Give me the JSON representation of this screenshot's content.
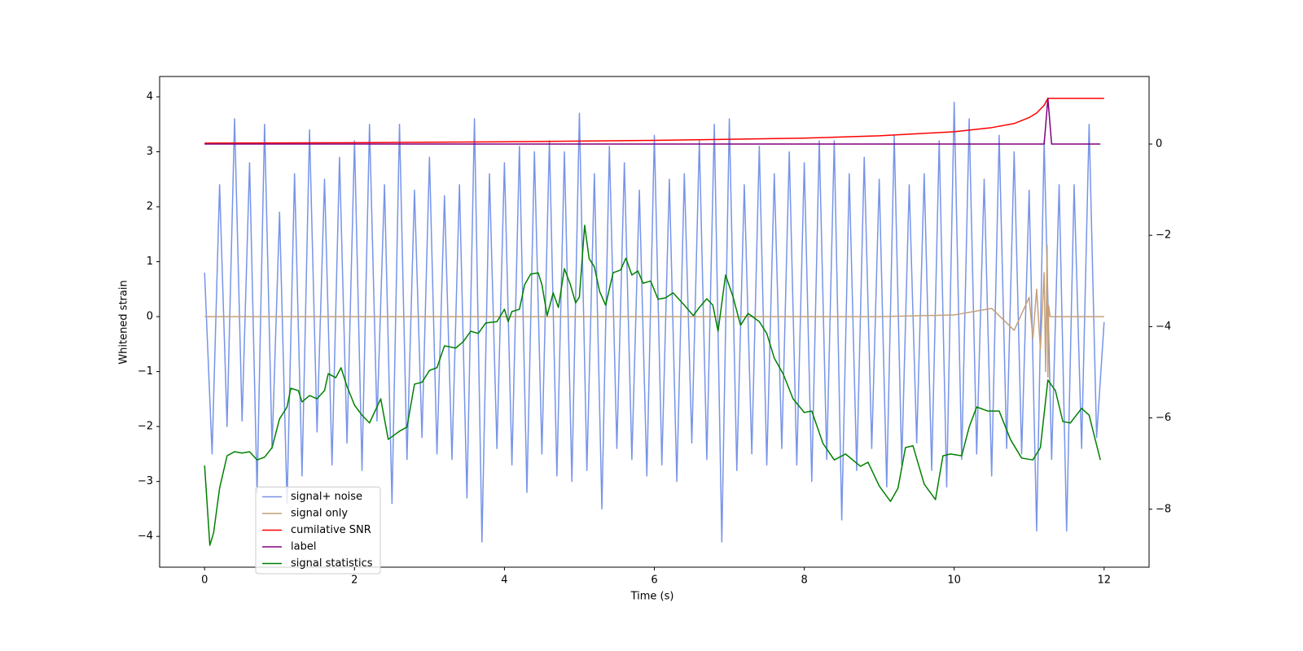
{
  "chart_data": {
    "type": "line",
    "xlabel": "Time (s)",
    "ylabel": "Whitened strain",
    "xlim": [
      -0.6,
      12.6
    ],
    "xticks": [
      0,
      2,
      4,
      6,
      8,
      10,
      12
    ],
    "ylim": [
      -4.56,
      4.37
    ],
    "yticks": [
      {
        "value": -4,
        "label": "−4"
      },
      {
        "value": -3,
        "label": "−3"
      },
      {
        "value": -2,
        "label": "−2"
      },
      {
        "value": -1,
        "label": "−1"
      },
      0,
      1,
      2,
      3,
      4
    ],
    "y2lim": [
      -9.27,
      1.48
    ],
    "y2ticks": [
      {
        "value": -8,
        "label": "−8"
      },
      {
        "value": -6,
        "label": "−6"
      },
      {
        "value": -4,
        "label": "−4"
      },
      {
        "value": -2,
        "label": "−2"
      },
      0
    ],
    "legend": "lower left",
    "series": [
      {
        "name": "signal+ noise",
        "color": "#7794e8",
        "x": [
          0,
          0.1,
          0.2,
          0.3,
          0.4,
          0.5,
          0.6,
          0.7,
          0.8,
          0.9,
          1,
          1.1,
          1.2,
          1.3,
          1.4,
          1.5,
          1.6,
          1.7,
          1.8,
          1.9,
          2,
          2.1,
          2.2,
          2.3,
          2.4,
          2.5,
          2.6,
          2.7,
          2.8,
          2.9,
          3,
          3.1,
          3.2,
          3.3,
          3.4,
          3.5,
          3.6,
          3.7,
          3.8,
          3.9,
          4,
          4.1,
          4.2,
          4.3,
          4.4,
          4.5,
          4.6,
          4.7,
          4.8,
          4.9,
          5,
          5.1,
          5.2,
          5.3,
          5.4,
          5.5,
          5.6,
          5.7,
          5.8,
          5.9,
          6,
          6.1,
          6.2,
          6.3,
          6.4,
          6.5,
          6.6,
          6.7,
          6.8,
          6.9,
          7,
          7.1,
          7.2,
          7.3,
          7.4,
          7.5,
          7.6,
          7.7,
          7.8,
          7.9,
          8,
          8.1,
          8.2,
          8.3,
          8.4,
          8.5,
          8.6,
          8.7,
          8.8,
          8.9,
          9,
          9.1,
          9.2,
          9.3,
          9.4,
          9.5,
          9.6,
          9.7,
          9.8,
          9.9,
          10,
          10.1,
          10.2,
          10.3,
          10.4,
          10.5,
          10.6,
          10.7,
          10.8,
          10.9,
          11,
          11.1,
          11.2,
          11.3,
          11.4,
          11.5,
          11.6,
          11.7,
          11.8,
          11.9,
          12
        ],
        "values": [
          0.8,
          -2.5,
          2.4,
          -2.0,
          3.6,
          -1.9,
          2.8,
          -3.2,
          3.5,
          -2.4,
          1.9,
          -3.4,
          2.6,
          -2.9,
          3.4,
          -2.1,
          2.5,
          -2.7,
          2.9,
          -2.3,
          3.2,
          -2.8,
          3.5,
          -1.9,
          2.4,
          -3.4,
          3.5,
          -2.6,
          2.3,
          -2.2,
          2.9,
          -2.5,
          2.2,
          -2.6,
          2.4,
          -3.3,
          3.6,
          -4.1,
          2.6,
          -2.4,
          2.8,
          -2.7,
          3.1,
          -3.2,
          3.0,
          -2.5,
          3.2,
          -2.9,
          3.0,
          -3.0,
          3.7,
          -2.8,
          2.6,
          -3.5,
          3.1,
          -2.4,
          2.8,
          -2.6,
          2.3,
          -2.9,
          3.3,
          -2.7,
          2.5,
          -3.0,
          2.6,
          -2.3,
          3.2,
          -2.6,
          3.5,
          -4.1,
          3.6,
          -2.8,
          2.4,
          -2.5,
          3.1,
          -2.7,
          2.6,
          -2.4,
          3.0,
          -2.7,
          2.8,
          -3.0,
          3.2,
          -2.6,
          3.2,
          -3.7,
          2.6,
          -2.8,
          2.9,
          -2.4,
          2.5,
          -3.1,
          3.3,
          -2.7,
          2.4,
          -2.3,
          2.6,
          -2.8,
          3.2,
          -3.1,
          3.9,
          -2.6,
          3.6,
          -2.5,
          2.5,
          -2.9,
          3.3,
          -2.4,
          3.0,
          -2.5,
          2.3,
          -3.9,
          3.2,
          -2.6,
          2.4,
          -3.9,
          2.4,
          -2.4,
          3.5,
          -2.2,
          -0.1
        ]
      },
      {
        "name": "signal only",
        "color": "#c4a07a",
        "x": [
          0,
          2,
          4,
          6,
          8,
          9,
          10,
          10.5,
          10.8,
          11,
          11.05,
          11.1,
          11.15,
          11.2,
          11.22,
          11.24,
          11.25,
          11.26,
          11.28,
          11.3,
          12
        ],
        "values": [
          0,
          0,
          0,
          0,
          0,
          0,
          0.03,
          0.15,
          -0.25,
          0.35,
          -0.4,
          0.5,
          -0.6,
          0.8,
          -1.0,
          1.3,
          -1.1,
          0.2,
          0,
          0,
          0
        ]
      },
      {
        "name": "cumilative SNR",
        "color": "#ff0000",
        "axis": "y2",
        "x": [
          0,
          2,
          4,
          6,
          8,
          9,
          10,
          10.5,
          10.8,
          11,
          11.1,
          11.2,
          11.25,
          12
        ],
        "values": [
          0.02,
          0.03,
          0.05,
          0.08,
          0.13,
          0.18,
          0.27,
          0.36,
          0.45,
          0.58,
          0.68,
          0.85,
          1.0,
          1.0
        ]
      },
      {
        "name": "label",
        "color": "#800080",
        "axis": "y2",
        "x": [
          0,
          11.2,
          11.25,
          11.3,
          11.95
        ],
        "values": [
          0,
          0,
          1,
          0,
          0
        ]
      },
      {
        "name": "signal statistics",
        "color": "#008000",
        "axis": "y2",
        "x": [
          0,
          0.07,
          0.12,
          0.2,
          0.3,
          0.4,
          0.5,
          0.6,
          0.7,
          0.8,
          0.9,
          1.0,
          1.1,
          1.15,
          1.25,
          1.3,
          1.4,
          1.5,
          1.6,
          1.65,
          1.75,
          1.82,
          1.9,
          2.0,
          2.1,
          2.2,
          2.35,
          2.45,
          2.6,
          2.7,
          2.8,
          2.9,
          3.0,
          3.1,
          3.2,
          3.35,
          3.45,
          3.55,
          3.65,
          3.75,
          3.9,
          4.0,
          4.05,
          4.1,
          4.2,
          4.27,
          4.35,
          4.45,
          4.5,
          4.57,
          4.65,
          4.72,
          4.8,
          4.88,
          4.95,
          5.0,
          5.07,
          5.13,
          5.2,
          5.27,
          5.35,
          5.45,
          5.55,
          5.62,
          5.7,
          5.78,
          5.85,
          5.95,
          6.05,
          6.15,
          6.25,
          6.4,
          6.52,
          6.6,
          6.7,
          6.78,
          6.85,
          6.95,
          7.05,
          7.15,
          7.25,
          7.4,
          7.5,
          7.6,
          7.72,
          7.85,
          8.0,
          8.1,
          8.25,
          8.4,
          8.55,
          8.75,
          8.85,
          9.0,
          9.15,
          9.25,
          9.35,
          9.45,
          9.6,
          9.75,
          9.85,
          9.95,
          10.1,
          10.2,
          10.3,
          10.45,
          10.6,
          10.75,
          10.9,
          11.05,
          11.15,
          11.25,
          11.35,
          11.45,
          11.55,
          11.7,
          11.8,
          11.95
        ],
        "values": [
          -7.04,
          -8.79,
          -8.52,
          -7.54,
          -6.83,
          -6.74,
          -6.77,
          -6.74,
          -6.92,
          -6.86,
          -6.65,
          -6.02,
          -5.76,
          -5.35,
          -5.4,
          -5.65,
          -5.51,
          -5.58,
          -5.4,
          -5.03,
          -5.12,
          -4.9,
          -5.31,
          -5.72,
          -5.94,
          -6.11,
          -5.58,
          -6.47,
          -6.29,
          -6.2,
          -5.26,
          -5.22,
          -4.96,
          -4.9,
          -4.42,
          -4.47,
          -4.33,
          -4.1,
          -4.15,
          -3.92,
          -3.89,
          -3.62,
          -3.89,
          -3.67,
          -3.62,
          -3.08,
          -2.85,
          -2.82,
          -3.08,
          -3.76,
          -3.26,
          -3.58,
          -2.73,
          -3.08,
          -3.48,
          -3.35,
          -1.78,
          -2.51,
          -2.69,
          -3.23,
          -3.53,
          -2.82,
          -2.76,
          -2.5,
          -2.87,
          -2.78,
          -3.05,
          -3.0,
          -3.4,
          -3.37,
          -3.26,
          -3.53,
          -3.76,
          -3.58,
          -3.39,
          -3.53,
          -4.1,
          -2.87,
          -3.35,
          -3.97,
          -3.71,
          -3.89,
          -4.15,
          -4.69,
          -5.04,
          -5.58,
          -5.88,
          -5.85,
          -6.56,
          -6.92,
          -6.79,
          -7.06,
          -6.97,
          -7.49,
          -7.83,
          -7.54,
          -6.65,
          -6.61,
          -7.45,
          -7.79,
          -6.83,
          -6.79,
          -6.83,
          -6.2,
          -5.76,
          -5.85,
          -5.85,
          -6.47,
          -6.88,
          -6.92,
          -6.65,
          -5.17,
          -5.4,
          -6.08,
          -6.11,
          -5.79,
          -5.94,
          -6.92
        ]
      }
    ]
  }
}
